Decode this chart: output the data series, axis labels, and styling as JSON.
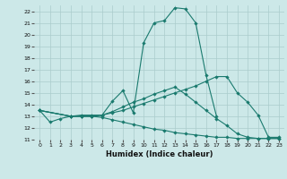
{
  "xlabel": "Humidex (Indice chaleur)",
  "bg_color": "#cce8e8",
  "grid_color": "#aacccc",
  "line_color": "#1a7a6e",
  "xlim": [
    -0.5,
    23.5
  ],
  "ylim": [
    11,
    22.5
  ],
  "xticks": [
    0,
    1,
    2,
    3,
    4,
    5,
    6,
    7,
    8,
    9,
    10,
    11,
    12,
    13,
    14,
    15,
    16,
    17,
    18,
    19,
    20,
    21,
    22,
    23
  ],
  "yticks": [
    11,
    12,
    13,
    14,
    15,
    16,
    17,
    18,
    19,
    20,
    21,
    22
  ],
  "line1": {
    "x": [
      0,
      1,
      2,
      3,
      4,
      5,
      6,
      7,
      8,
      9,
      10,
      11,
      12,
      13,
      14,
      15,
      16,
      17
    ],
    "y": [
      13.5,
      12.5,
      12.8,
      13.0,
      13.1,
      13.1,
      13.1,
      14.3,
      15.2,
      13.3,
      19.3,
      21.0,
      21.2,
      22.3,
      22.2,
      21.0,
      16.5,
      13.0
    ]
  },
  "line2": {
    "x": [
      0,
      3,
      4,
      5,
      6,
      7,
      8,
      9,
      10,
      11,
      12,
      13,
      14,
      15,
      16,
      17,
      18,
      19,
      20,
      21,
      22,
      23
    ],
    "y": [
      13.5,
      13.0,
      13.0,
      13.0,
      13.1,
      13.3,
      13.5,
      13.8,
      14.1,
      14.4,
      14.7,
      15.0,
      15.3,
      15.6,
      16.0,
      16.4,
      16.4,
      15.0,
      14.2,
      13.1,
      11.2,
      11.2
    ]
  },
  "line3": {
    "x": [
      0,
      3,
      4,
      5,
      6,
      7,
      8,
      9,
      10,
      11,
      12,
      13,
      14,
      15,
      16,
      17,
      18,
      19,
      20,
      21,
      22,
      23
    ],
    "y": [
      13.5,
      13.0,
      13.0,
      13.0,
      12.9,
      12.7,
      12.5,
      12.3,
      12.1,
      11.9,
      11.8,
      11.6,
      11.5,
      11.4,
      11.3,
      11.2,
      11.2,
      11.1,
      11.1,
      11.1,
      11.1,
      11.1
    ]
  },
  "line4": {
    "x": [
      0,
      3,
      4,
      5,
      6,
      7,
      8,
      9,
      10,
      11,
      12,
      13,
      14,
      15,
      16,
      17,
      18,
      19,
      20,
      21,
      22,
      23
    ],
    "y": [
      13.5,
      13.0,
      13.0,
      13.0,
      13.1,
      13.4,
      13.8,
      14.2,
      14.5,
      14.9,
      15.2,
      15.5,
      14.9,
      14.2,
      13.5,
      12.8,
      12.2,
      11.5,
      11.2,
      11.1,
      11.1,
      11.1
    ]
  }
}
